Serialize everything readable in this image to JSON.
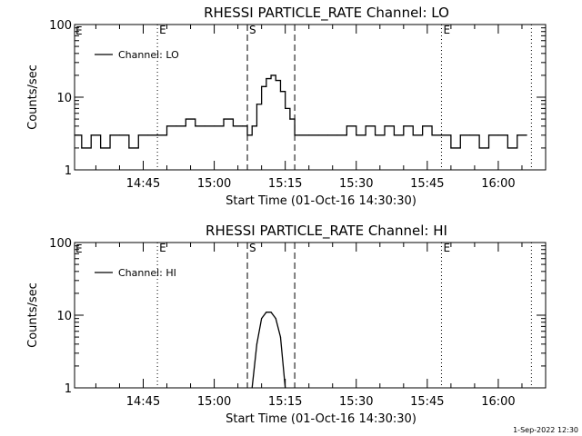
{
  "footer_timestamp": "1-Sep-2022 12:30",
  "chart_data": [
    {
      "type": "line",
      "title": "RHESSI PARTICLE_RATE Channel: LO",
      "xlabel": "Start Time (01-Oct-16 14:30:30)",
      "ylabel": "Counts/sec",
      "y_scale": "log",
      "ylim": [
        1,
        100
      ],
      "y_tick_labels": [
        "1",
        "10",
        "100"
      ],
      "xlim": [
        "14:30:30",
        "16:10"
      ],
      "x_tick_labels": [
        "14:45",
        "15:00",
        "15:15",
        "15:30",
        "15:45",
        "16:00"
      ],
      "legend": {
        "position": "top-left",
        "entries": [
          "Channel: LO"
        ]
      },
      "markers": [
        {
          "type": "dotted",
          "time": "14:48",
          "label": "E"
        },
        {
          "type": "dashed",
          "time": "15:07",
          "label": "S"
        },
        {
          "type": "dashed",
          "time": "15:17",
          "label": ""
        },
        {
          "type": "dotted",
          "time": "15:48",
          "label": "E"
        },
        {
          "type": "dotted",
          "time": "16:07",
          "label": ""
        }
      ],
      "corner_label": "E",
      "series": [
        {
          "name": "Channel: LO",
          "x": [
            "14:30:30",
            "14:32",
            "14:34",
            "14:36",
            "14:38",
            "14:40",
            "14:42",
            "14:44",
            "14:46",
            "14:48",
            "14:50",
            "14:52",
            "14:54",
            "14:56",
            "14:58",
            "15:00",
            "15:02",
            "15:04",
            "15:06",
            "15:07",
            "15:08",
            "15:09",
            "15:10",
            "15:11",
            "15:12",
            "15:13",
            "15:14",
            "15:15",
            "15:16",
            "15:17",
            "15:18",
            "15:20",
            "15:22",
            "15:24",
            "15:26",
            "15:28",
            "15:30",
            "15:32",
            "15:34",
            "15:36",
            "15:38",
            "15:40",
            "15:42",
            "15:44",
            "15:46",
            "15:48",
            "15:50",
            "15:52",
            "15:54",
            "15:56",
            "15:58",
            "16:00",
            "16:02",
            "16:04",
            "16:06"
          ],
          "values": [
            3,
            2,
            3,
            2,
            3,
            3,
            2,
            3,
            3,
            3,
            4,
            4,
            5,
            4,
            4,
            4,
            5,
            4,
            4,
            3,
            4,
            8,
            14,
            18,
            20,
            17,
            12,
            7,
            5,
            3,
            3,
            3,
            3,
            3,
            3,
            4,
            3,
            4,
            3,
            4,
            3,
            4,
            3,
            4,
            3,
            3,
            2,
            3,
            3,
            2,
            3,
            3,
            2,
            3,
            3
          ]
        }
      ]
    },
    {
      "type": "line",
      "title": "RHESSI PARTICLE_RATE Channel: HI",
      "xlabel": "Start Time (01-Oct-16 14:30:30)",
      "ylabel": "Counts/sec",
      "y_scale": "log",
      "ylim": [
        1,
        100
      ],
      "y_tick_labels": [
        "1",
        "10",
        "100"
      ],
      "xlim": [
        "14:30:30",
        "16:10"
      ],
      "x_tick_labels": [
        "14:45",
        "15:00",
        "15:15",
        "15:30",
        "15:45",
        "16:00"
      ],
      "legend": {
        "position": "top-left",
        "entries": [
          "Channel: HI"
        ]
      },
      "markers": [
        {
          "type": "dotted",
          "time": "14:48",
          "label": "E"
        },
        {
          "type": "dashed",
          "time": "15:07",
          "label": "S"
        },
        {
          "type": "dashed",
          "time": "15:17",
          "label": ""
        },
        {
          "type": "dotted",
          "time": "15:48",
          "label": "E"
        },
        {
          "type": "dotted",
          "time": "16:07",
          "label": ""
        }
      ],
      "corner_label": "E",
      "series": [
        {
          "name": "Channel: HI",
          "x": [
            "15:08",
            "15:09",
            "15:10",
            "15:11",
            "15:12",
            "15:13",
            "15:14",
            "15:15"
          ],
          "values": [
            1,
            4,
            9,
            11,
            11,
            9,
            5,
            1
          ]
        }
      ]
    }
  ]
}
